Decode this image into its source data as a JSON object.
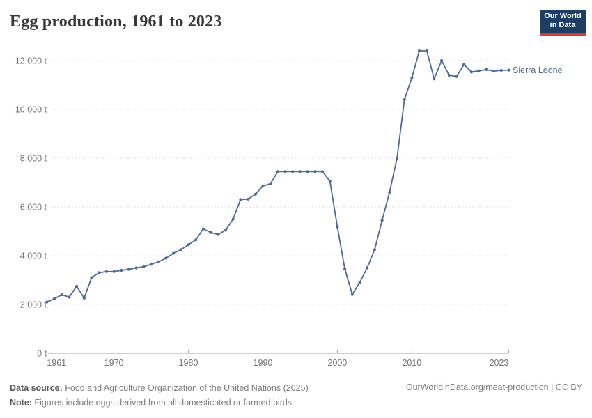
{
  "header": {
    "title": "Egg production, 1961 to 2023",
    "logo": {
      "line1": "Our World",
      "line2": "in Data",
      "bg_color": "#1d3d63",
      "accent_color": "#d73c32"
    }
  },
  "chart_data": {
    "type": "line",
    "title": "Egg production, 1961 to 2023",
    "unit": "t",
    "xlabel": "",
    "ylabel": "",
    "xlim": [
      1961,
      2023
    ],
    "ylim": [
      0,
      12000
    ],
    "grid": "horizontal-dashed",
    "legend_position": "end-of-line-label",
    "x_ticks": [
      1961,
      1970,
      1980,
      1990,
      2000,
      2010,
      2023
    ],
    "y_ticks": [
      0,
      2000,
      4000,
      6000,
      8000,
      10000,
      12000
    ],
    "y_tick_labels": [
      "0 t",
      "2,000 t",
      "4,000 t",
      "6,000 t",
      "8,000 t",
      "10,000 t",
      "12,000 t"
    ],
    "series": [
      {
        "name": "Sierra Leone",
        "color": "#4c6a9c",
        "x": [
          1961,
          1962,
          1963,
          1964,
          1965,
          1966,
          1967,
          1968,
          1969,
          1970,
          1971,
          1972,
          1973,
          1974,
          1975,
          1976,
          1977,
          1978,
          1979,
          1980,
          1981,
          1982,
          1983,
          1984,
          1985,
          1986,
          1987,
          1988,
          1989,
          1990,
          1991,
          1992,
          1993,
          1994,
          1995,
          1996,
          1997,
          1998,
          1999,
          2000,
          2001,
          2002,
          2003,
          2004,
          2005,
          2006,
          2007,
          2008,
          2009,
          2010,
          2011,
          2012,
          2013,
          2014,
          2015,
          2016,
          2017,
          2018,
          2019,
          2020,
          2021,
          2022,
          2023
        ],
        "values": [
          2100,
          2230,
          2400,
          2300,
          2750,
          2260,
          3100,
          3300,
          3350,
          3350,
          3400,
          3440,
          3500,
          3550,
          3650,
          3750,
          3900,
          4100,
          4250,
          4450,
          4650,
          5100,
          4950,
          4870,
          5050,
          5500,
          6300,
          6320,
          6520,
          6860,
          6950,
          7450,
          7450,
          7450,
          7450,
          7450,
          7450,
          7450,
          7060,
          5180,
          3460,
          2410,
          2900,
          3500,
          4250,
          5450,
          6600,
          7980,
          10400,
          11300,
          12400,
          12400,
          11250,
          12000,
          11400,
          11350,
          11840,
          11530,
          11580,
          11630,
          11570,
          11600,
          11610
        ]
      }
    ],
    "style": {
      "line_color": "#4c6a9c",
      "gridline_color": "#dcdcdc",
      "axis_color": "#a3a3a3",
      "tick_text_color": "#737373"
    }
  },
  "footer": {
    "datasource_label": "Data source:",
    "datasource_text": "Food and Agriculture Organization of the United Nations (2025)",
    "note_label": "Note:",
    "note_text": "Figures include eggs derived from all domesticated or farmed birds.",
    "link": "OurWorldinData.org/meat-production | CC BY"
  }
}
